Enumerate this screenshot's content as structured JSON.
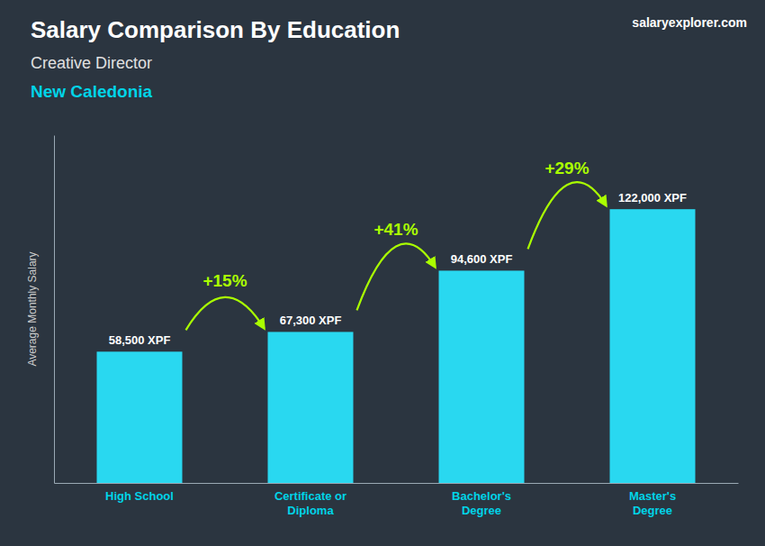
{
  "chart_data": {
    "type": "bar",
    "title": "Salary Comparison By Education",
    "subtitle": "Creative Director",
    "ylabel": "Average Monthly Salary",
    "categories": [
      "High School",
      "Certificate or\nDiploma",
      "Bachelor's\nDegree",
      "Master's\nDegree"
    ],
    "values": [
      58500,
      67300,
      94600,
      122000
    ],
    "value_labels": [
      "58,500 XPF",
      "67,300 XPF",
      "94,600 XPF",
      "122,000 XPF"
    ],
    "data_labels": true,
    "color": "#29d8f0",
    "ylim": [
      0,
      155000
    ],
    "grid": false,
    "tick_labels": "x",
    "annotations": [
      {
        "text": "+15%",
        "from": 0,
        "to": 1
      },
      {
        "text": "+41%",
        "from": 1,
        "to": 2
      },
      {
        "text": "+29%",
        "from": 2,
        "to": 3
      },
      {
        "text": "New Caledonia"
      },
      {
        "text": "salaryexplorer.com"
      }
    ]
  }
}
